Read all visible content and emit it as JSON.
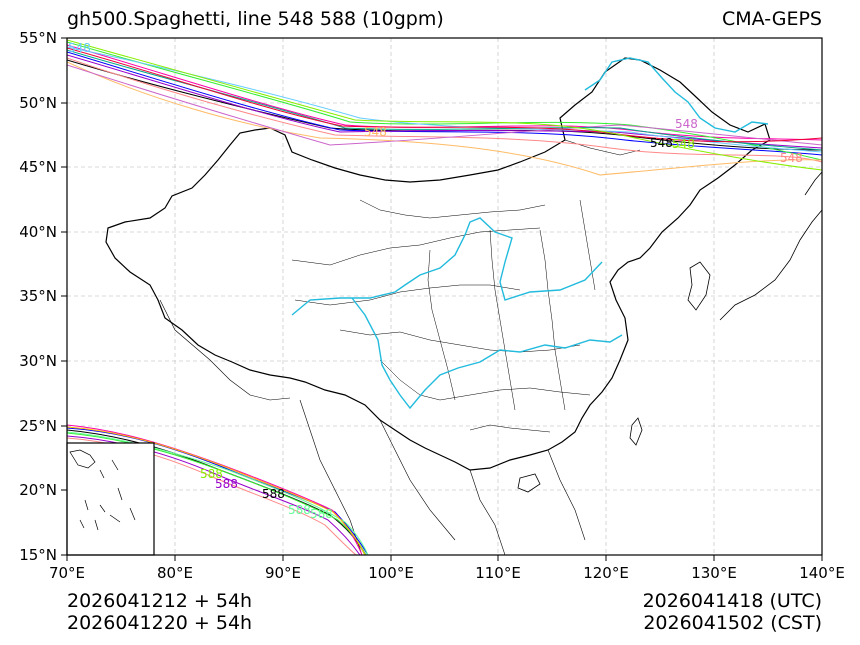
{
  "title": "gh500.Spaghetti, line 548 588 (10gpm)",
  "source": "CMA-GEPS",
  "map": {
    "lon_ticks": [
      "70°E",
      "80°E",
      "90°E",
      "100°E",
      "110°E",
      "120°E",
      "130°E",
      "140°E"
    ],
    "lat_ticks": [
      "55°N",
      "50°N",
      "45°N",
      "40°N",
      "35°N",
      "30°N",
      "25°N",
      "20°N",
      "15°N"
    ],
    "lon_range": [
      70,
      140
    ],
    "lat_range": [
      15,
      55
    ],
    "contour_labels": {
      "l548a": "548",
      "l548b": "548",
      "l548c": "548",
      "l548d": "548",
      "l548e": "548",
      "l548f": "548",
      "l588a": "588",
      "l588b": "588",
      "l588c": "588",
      "l588d": "588",
      "l588e": "588"
    },
    "colors": {
      "river": "#22bbdd",
      "border": "#000000",
      "grid": "#cccccc"
    }
  },
  "footer": {
    "init_utc": "2026041212 + 54h",
    "init_cst": "2026041220 + 54h",
    "valid_utc": "2026041418 (UTC)",
    "valid_cst": "2026041502 (CST)"
  }
}
